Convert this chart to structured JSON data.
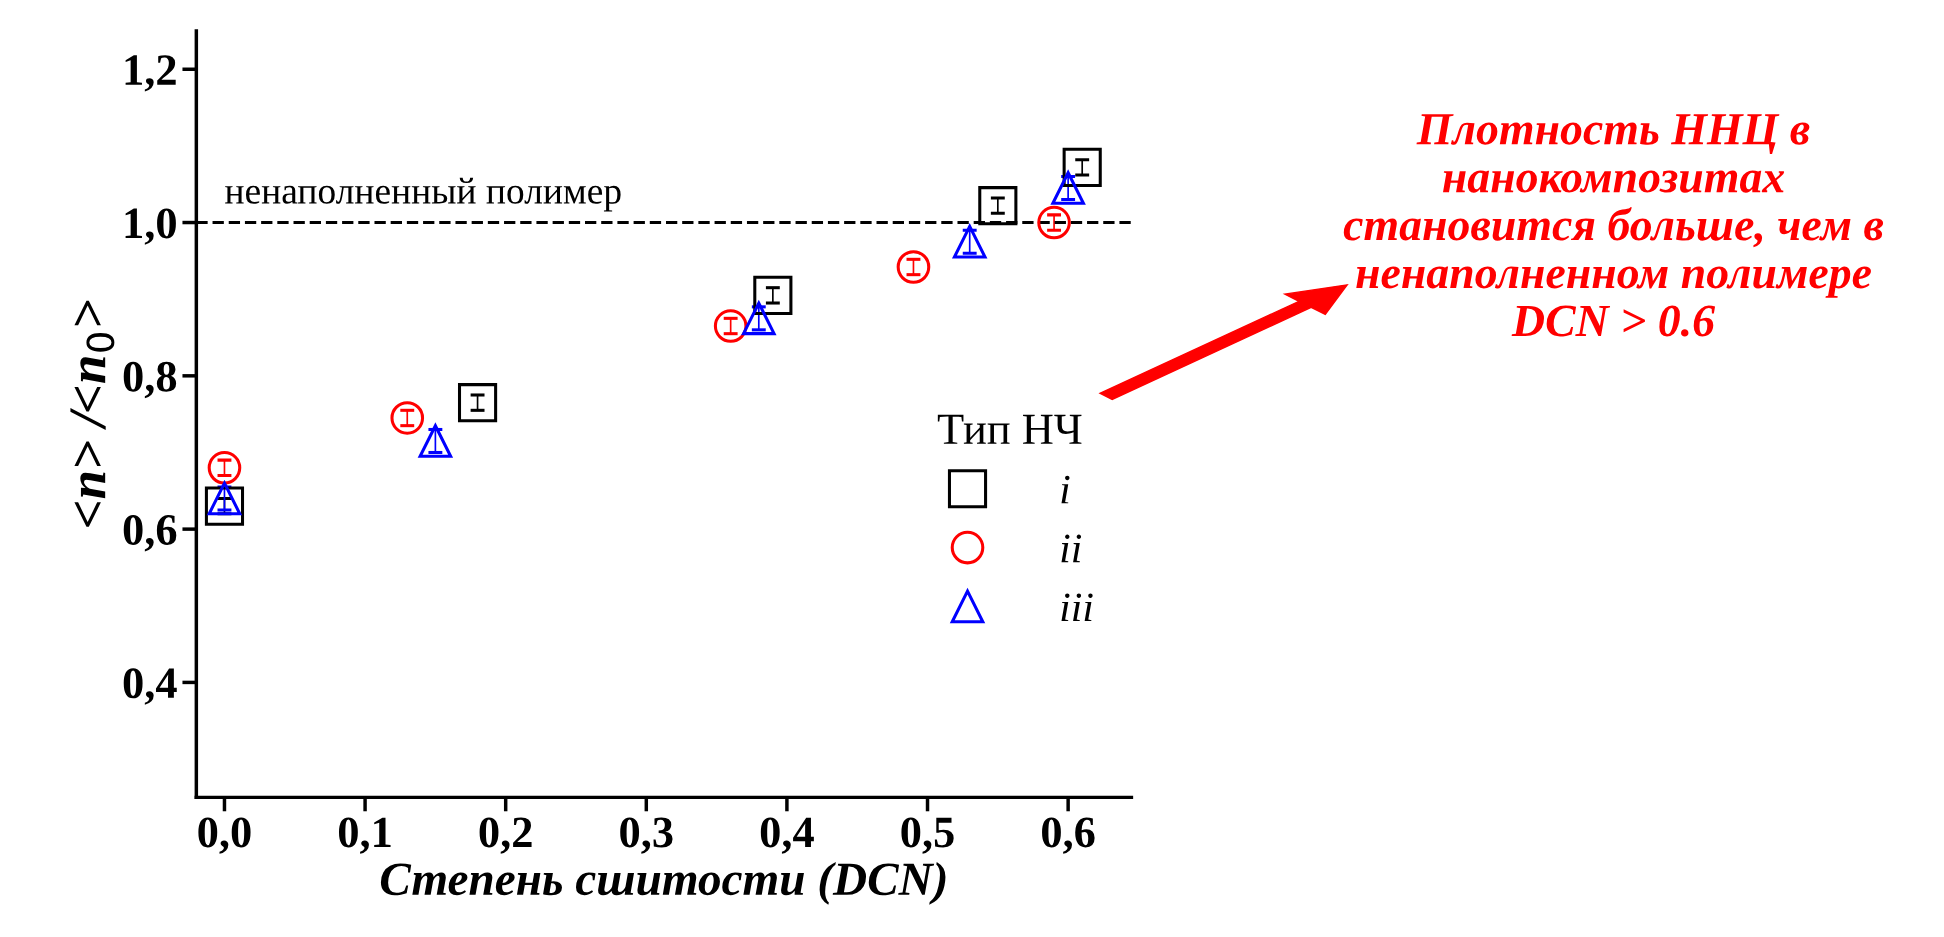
{
  "chart_data": {
    "type": "scatter",
    "xlabel": "Степень сшитости (DCN)",
    "ylabel": "<n> /<n$_{0}$>",
    "legend_title": "Тип НЧ",
    "series": [
      {
        "name": "i",
        "color": "#000000",
        "marker": "square",
        "x": [
          0.0,
          0.18,
          0.39,
          0.55,
          0.61
        ],
        "values": [
          0.63,
          0.765,
          0.905,
          1.022,
          1.072
        ],
        "errors": [
          0.01,
          0.01,
          0.01,
          0.01,
          0.01
        ]
      },
      {
        "name": "ii",
        "color": "#ff0000",
        "marker": "circle",
        "x": [
          0.0,
          0.13,
          0.36,
          0.49,
          0.59
        ],
        "values": [
          0.68,
          0.745,
          0.865,
          0.942,
          1.0
        ],
        "errors": [
          0.01,
          0.01,
          0.01,
          0.01,
          0.01
        ]
      },
      {
        "name": "iii",
        "color": "#0000ff",
        "marker": "triangle",
        "x": [
          0.0,
          0.15,
          0.38,
          0.53,
          0.6
        ],
        "values": [
          0.64,
          0.715,
          0.875,
          0.975,
          1.045
        ],
        "errors": [
          0.015,
          0.015,
          0.015,
          0.015,
          0.015
        ]
      }
    ],
    "xlim": [
      -0.02,
      0.645
    ],
    "ylim": [
      0.25,
      1.25
    ],
    "xticks": [
      {
        "value": 0.0,
        "label": "0,0"
      },
      {
        "value": 0.1,
        "label": "0,1"
      },
      {
        "value": 0.2,
        "label": "0,2"
      },
      {
        "value": 0.3,
        "label": "0,3"
      },
      {
        "value": 0.4,
        "label": "0,4"
      },
      {
        "value": 0.5,
        "label": "0,5"
      },
      {
        "value": 0.6,
        "label": "0,6"
      }
    ],
    "yticks": [
      {
        "value": 0.4,
        "label": "0,4"
      },
      {
        "value": 0.6,
        "label": "0,6"
      },
      {
        "value": 0.8,
        "label": "0,8"
      },
      {
        "value": 1.0,
        "label": "1,0"
      },
      {
        "value": 1.2,
        "label": "1,2"
      }
    ],
    "ref_lines": [
      {
        "axis": "y",
        "value": 1.0,
        "label": "ненаполненный полимер",
        "color": "#000000",
        "line_style": "dashed"
      }
    ],
    "annotations": [
      "Плотность ННЦ в\nнанокомпозитах\nстановится больше, чем в\nненаполненном полимере\nDCN > 0.6"
    ],
    "legend": "right",
    "grid": false
  }
}
